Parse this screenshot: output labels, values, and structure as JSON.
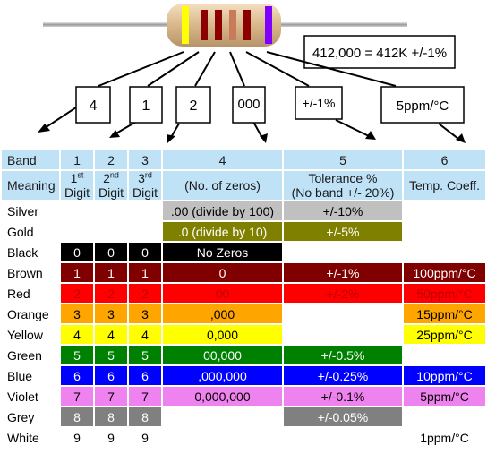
{
  "diagram": {
    "formula": "412,000 = 412K +/-1%",
    "labels": [
      "4",
      "1",
      "2",
      "000",
      "+/-1%",
      "5ppm/°C"
    ],
    "body_bands": [
      "#ffff00",
      "#8b0000",
      "#8b0000",
      "#c77b5a",
      "#8b0000",
      "#8000ff"
    ]
  },
  "table": {
    "band_label": "Band",
    "band_numbers": [
      "1",
      "2",
      "3",
      "4",
      "5",
      "6"
    ],
    "meaning_label": "Meaning",
    "digit_headers": [
      {
        "num": "1",
        "sup": "st",
        "word": "Digit"
      },
      {
        "num": "2",
        "sup": "nd",
        "word": "Digit"
      },
      {
        "num": "3",
        "sup": "rd",
        "word": "Digit"
      }
    ],
    "zeros_header": "(No. of zeros)",
    "tolerance_header_line1": "Tolerance %",
    "tolerance_header_line2": "(No band +/- 20%)",
    "temp_header": "Temp. Coeff.",
    "rows": [
      {
        "name": "Silver",
        "bg": "#c0c0c0",
        "fg": "#000000",
        "digits": [
          "",
          "",
          ""
        ],
        "mult": ".00 (divide by 100)",
        "tol": "+/-10%",
        "temp": ""
      },
      {
        "name": "Gold",
        "bg": "#808000",
        "fg": "#ffffff",
        "digits": [
          "",
          "",
          ""
        ],
        "mult": ".0 (divide by 10)",
        "tol": "+/-5%",
        "temp": ""
      },
      {
        "name": "Black",
        "bg": "#000000",
        "fg": "#ffffff",
        "digits": [
          "0",
          "0",
          "0"
        ],
        "mult": "No Zeros",
        "tol": "",
        "temp": ""
      },
      {
        "name": "Brown",
        "bg": "#800000",
        "fg": "#ffffff",
        "digits": [
          "1",
          "1",
          "1"
        ],
        "mult": "0",
        "tol": "+/-1%",
        "temp": "100ppm/°C"
      },
      {
        "name": "Red",
        "bg": "#ff0000",
        "fg": "#c00000",
        "digits": [
          "2",
          "2",
          "2"
        ],
        "mult": "00",
        "tol": "+/-2%",
        "temp": "50ppm/°C"
      },
      {
        "name": "Orange",
        "bg": "#ffa500",
        "fg": "#000000",
        "digits": [
          "3",
          "3",
          "3"
        ],
        "mult": ",000",
        "tol": "",
        "temp": "15ppm/°C"
      },
      {
        "name": "Yellow",
        "bg": "#ffff00",
        "fg": "#000000",
        "digits": [
          "4",
          "4",
          "4"
        ],
        "mult": "0,000",
        "tol": "",
        "temp": "25ppm/°C"
      },
      {
        "name": "Green",
        "bg": "#008000",
        "fg": "#ffffff",
        "digits": [
          "5",
          "5",
          "5"
        ],
        "mult": "00,000",
        "tol": "+/-0.5%",
        "temp": ""
      },
      {
        "name": "Blue",
        "bg": "#0000ff",
        "fg": "#ffffff",
        "digits": [
          "6",
          "6",
          "6"
        ],
        "mult": ",000,000",
        "tol": "+/-0.25%",
        "temp": "10ppm/°C"
      },
      {
        "name": "Violet",
        "bg": "#ee82ee",
        "fg": "#000000",
        "digits": [
          "7",
          "7",
          "7"
        ],
        "mult": "0,000,000",
        "tol": "+/-0.1%",
        "temp": "5ppm/°C"
      },
      {
        "name": "Grey",
        "bg": "#808080",
        "fg": "#ffffff",
        "digits": [
          "8",
          "8",
          "8"
        ],
        "mult": "",
        "tol": "+/-0.05%",
        "temp": ""
      },
      {
        "name": "White",
        "bg": "#ffffff",
        "fg": "#000000",
        "digits": [
          "9",
          "9",
          "9"
        ],
        "mult": "",
        "tol": "",
        "temp": "1ppm/°C"
      }
    ]
  }
}
